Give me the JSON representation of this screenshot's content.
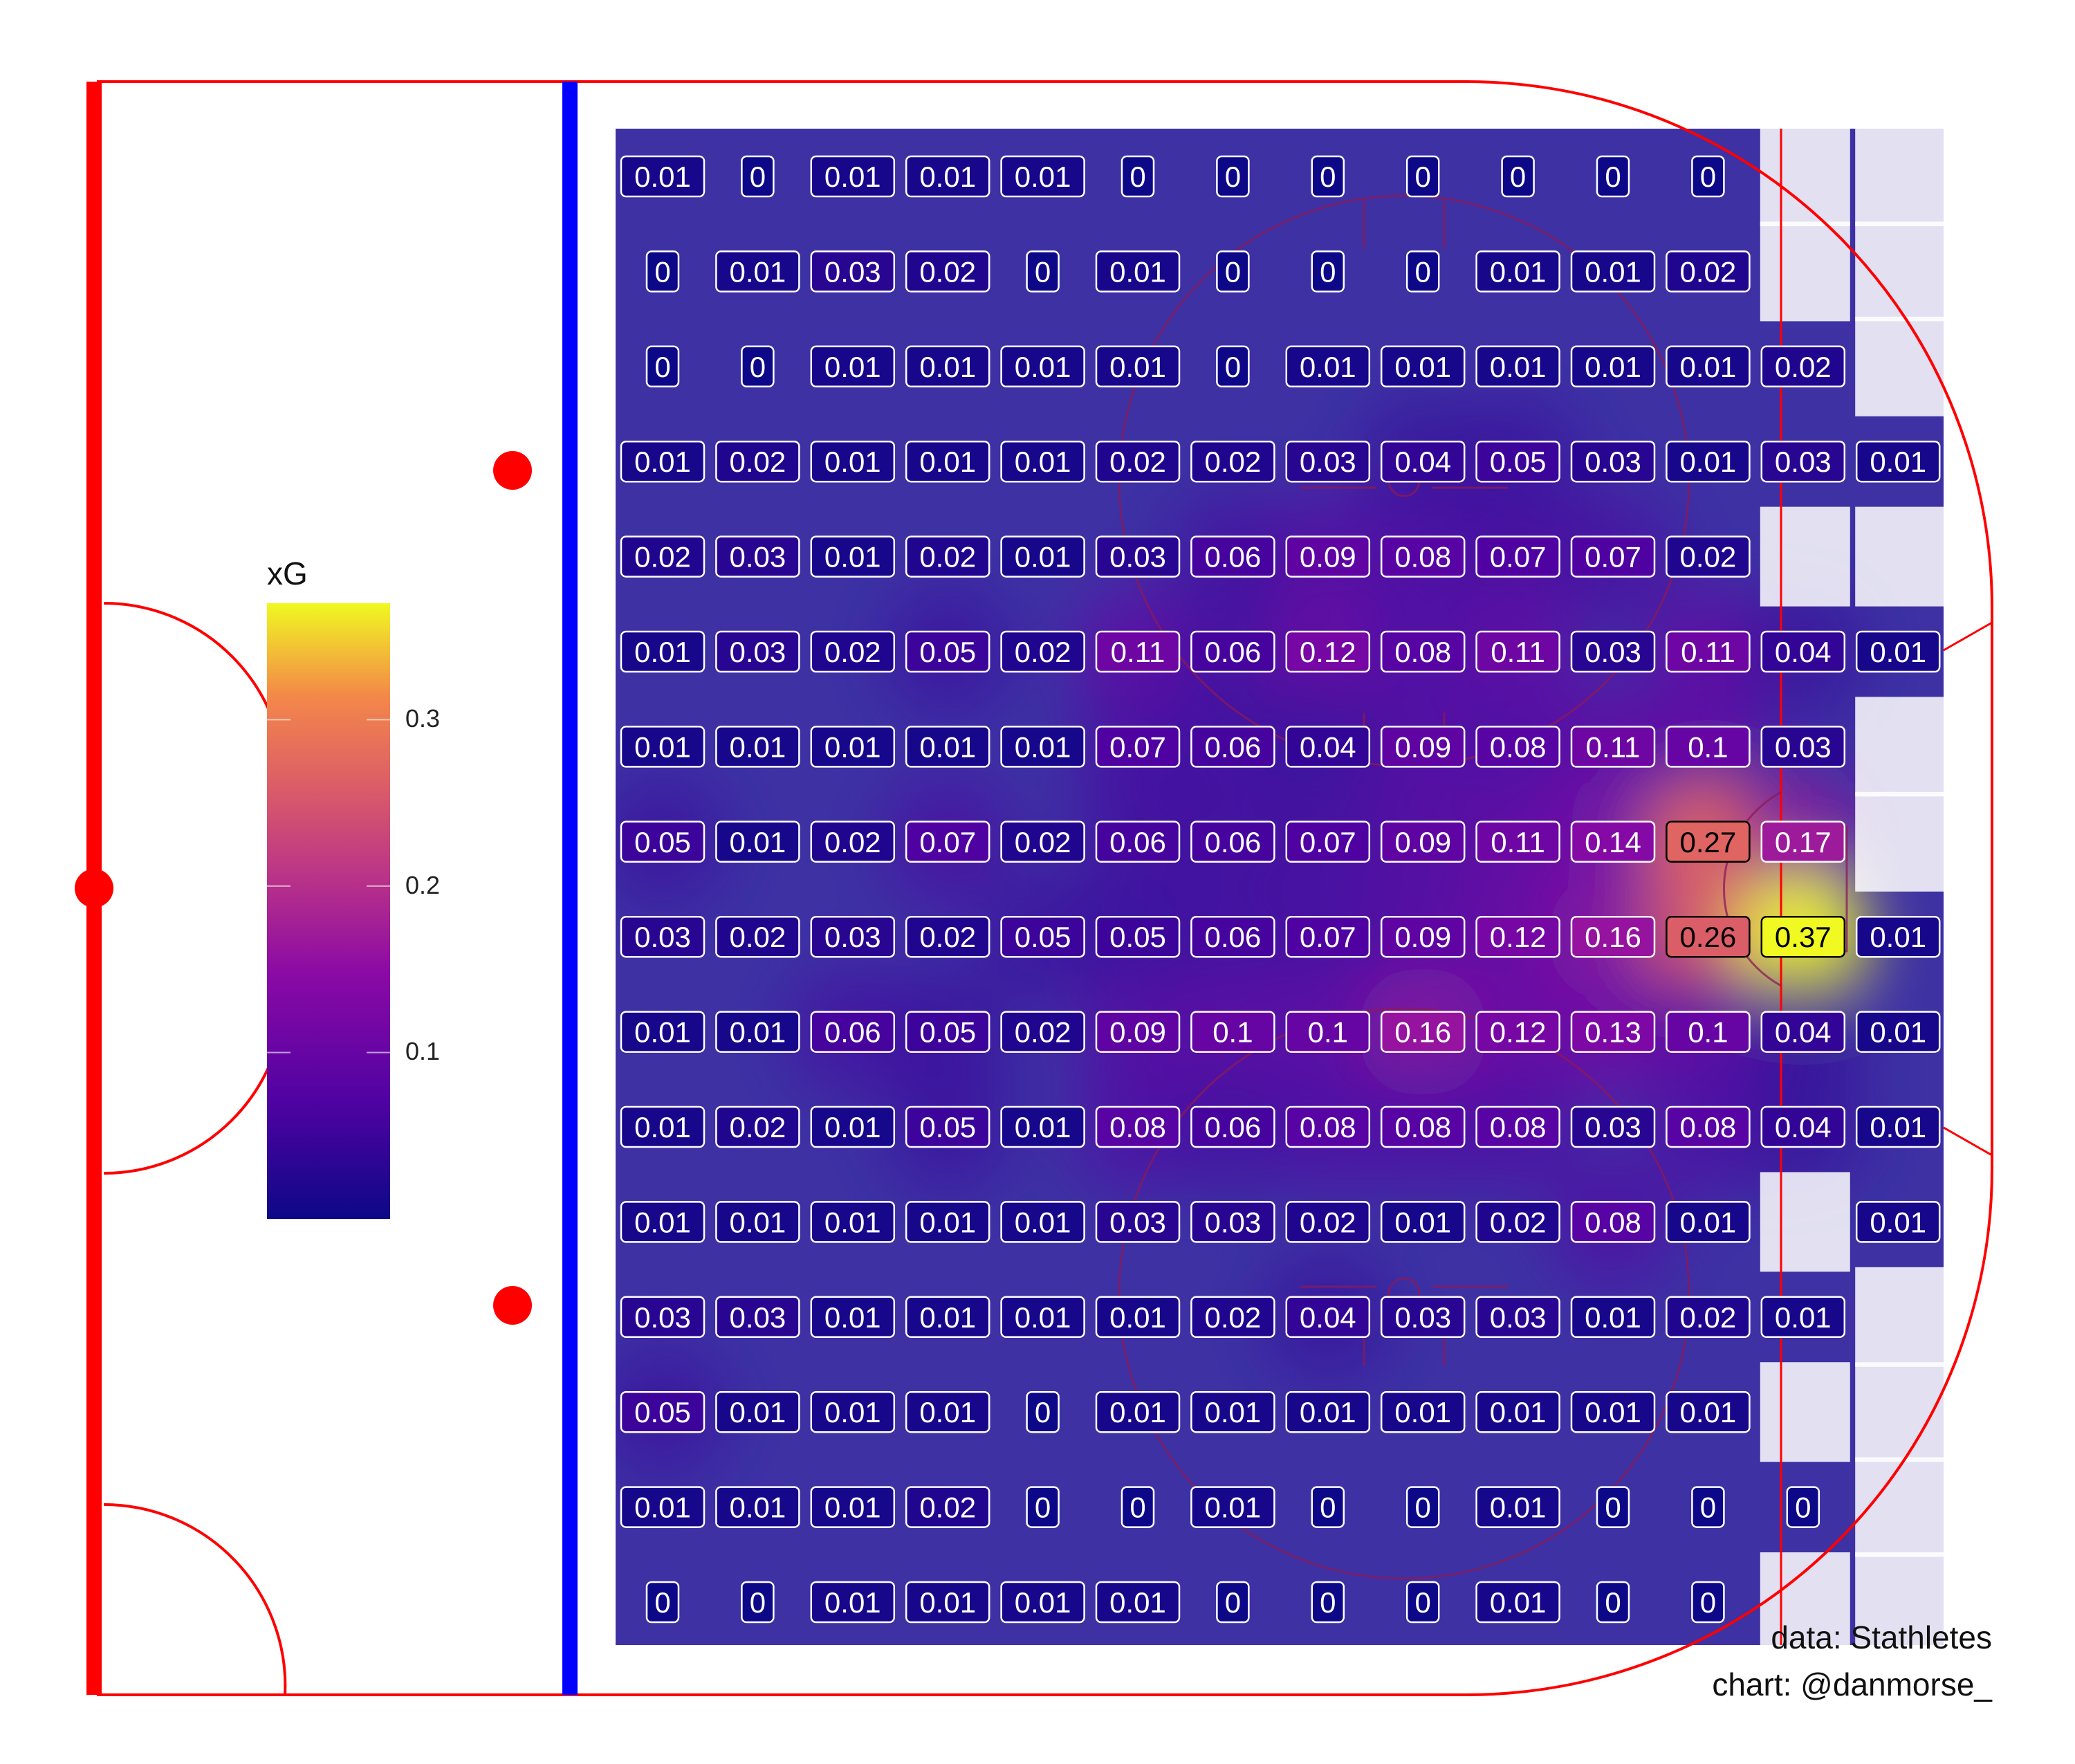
{
  "chart_data": {
    "type": "heatmap",
    "legend": {
      "title": "xG",
      "ticks": [
        0.1,
        0.2,
        0.3
      ],
      "tick_labels": [
        "0.1",
        "0.2",
        "0.3"
      ],
      "range": [
        0,
        0.37
      ]
    },
    "rows": [
      [
        "0.01",
        "0",
        "0.01",
        "0.01",
        "0.01",
        "0",
        "0",
        "0",
        "0",
        "0",
        "0",
        "0",
        "",
        ""
      ],
      [
        "0",
        "0.01",
        "0.03",
        "0.02",
        "0",
        "0.01",
        "0",
        "0",
        "0",
        "0.01",
        "0.01",
        "0.02",
        "",
        ""
      ],
      [
        "0",
        "0",
        "0.01",
        "0.01",
        "0.01",
        "0.01",
        "0",
        "0.01",
        "0.01",
        "0.01",
        "0.01",
        "0.01",
        "0.02",
        ""
      ],
      [
        "0.01",
        "0.02",
        "0.01",
        "0.01",
        "0.01",
        "0.02",
        "0.02",
        "0.03",
        "0.04",
        "0.05",
        "0.03",
        "0.01",
        "0.03",
        "0.01"
      ],
      [
        "0.02",
        "0.03",
        "0.01",
        "0.02",
        "0.01",
        "0.03",
        "0.06",
        "0.09",
        "0.08",
        "0.07",
        "0.07",
        "0.02",
        "",
        ""
      ],
      [
        "0.01",
        "0.03",
        "0.02",
        "0.05",
        "0.02",
        "0.11",
        "0.06",
        "0.12",
        "0.08",
        "0.11",
        "0.03",
        "0.11",
        "0.04",
        "0.01"
      ],
      [
        "0.01",
        "0.01",
        "0.01",
        "0.01",
        "0.01",
        "0.07",
        "0.06",
        "0.04",
        "0.09",
        "0.08",
        "0.11",
        "0.1",
        "0.03",
        ""
      ],
      [
        "0.05",
        "0.01",
        "0.02",
        "0.07",
        "0.02",
        "0.06",
        "0.06",
        "0.07",
        "0.09",
        "0.11",
        "0.14",
        "0.27",
        "0.17",
        ""
      ],
      [
        "0.03",
        "0.02",
        "0.03",
        "0.02",
        "0.05",
        "0.05",
        "0.06",
        "0.07",
        "0.09",
        "0.12",
        "0.16",
        "0.26",
        "0.37",
        "0.01"
      ],
      [
        "0.01",
        "0.01",
        "0.06",
        "0.05",
        "0.02",
        "0.09",
        "0.1",
        "0.1",
        "0.16",
        "0.12",
        "0.13",
        "0.1",
        "0.04",
        "0.01"
      ],
      [
        "0.01",
        "0.02",
        "0.01",
        "0.05",
        "0.01",
        "0.08",
        "0.06",
        "0.08",
        "0.08",
        "0.08",
        "0.03",
        "0.08",
        "0.04",
        "0.01"
      ],
      [
        "0.01",
        "0.01",
        "0.01",
        "0.01",
        "0.01",
        "0.03",
        "0.03",
        "0.02",
        "0.01",
        "0.02",
        "0.08",
        "0.01",
        "",
        "0.01"
      ],
      [
        "0.03",
        "0.03",
        "0.01",
        "0.01",
        "0.01",
        "0.01",
        "0.02",
        "0.04",
        "0.03",
        "0.03",
        "0.01",
        "0.02",
        "0.01",
        ""
      ],
      [
        "0.05",
        "0.01",
        "0.01",
        "0.01",
        "0",
        "0.01",
        "0.01",
        "0.01",
        "0.01",
        "0.01",
        "0.01",
        "0.01",
        "",
        ""
      ],
      [
        "0.01",
        "0.01",
        "0.01",
        "0.02",
        "0",
        "0",
        "0.01",
        "0",
        "0",
        "0.01",
        "0",
        "0",
        "0",
        ""
      ],
      [
        "0",
        "0",
        "0.01",
        "0.01",
        "0.01",
        "0.01",
        "0",
        "0",
        "0",
        "0.01",
        "0",
        "0",
        "",
        ""
      ]
    ]
  },
  "captions": {
    "source": "data: Stathletes",
    "credit": "chart: @danmorse_"
  },
  "colors": {
    "rink_lines": "#ff0000",
    "blue_line": "#0000ff",
    "heatmap_base": "#3d31a4",
    "scale": [
      "#0d0887",
      "#6a00a8",
      "#b12a90",
      "#e16462",
      "#fca636",
      "#f0f921"
    ]
  }
}
